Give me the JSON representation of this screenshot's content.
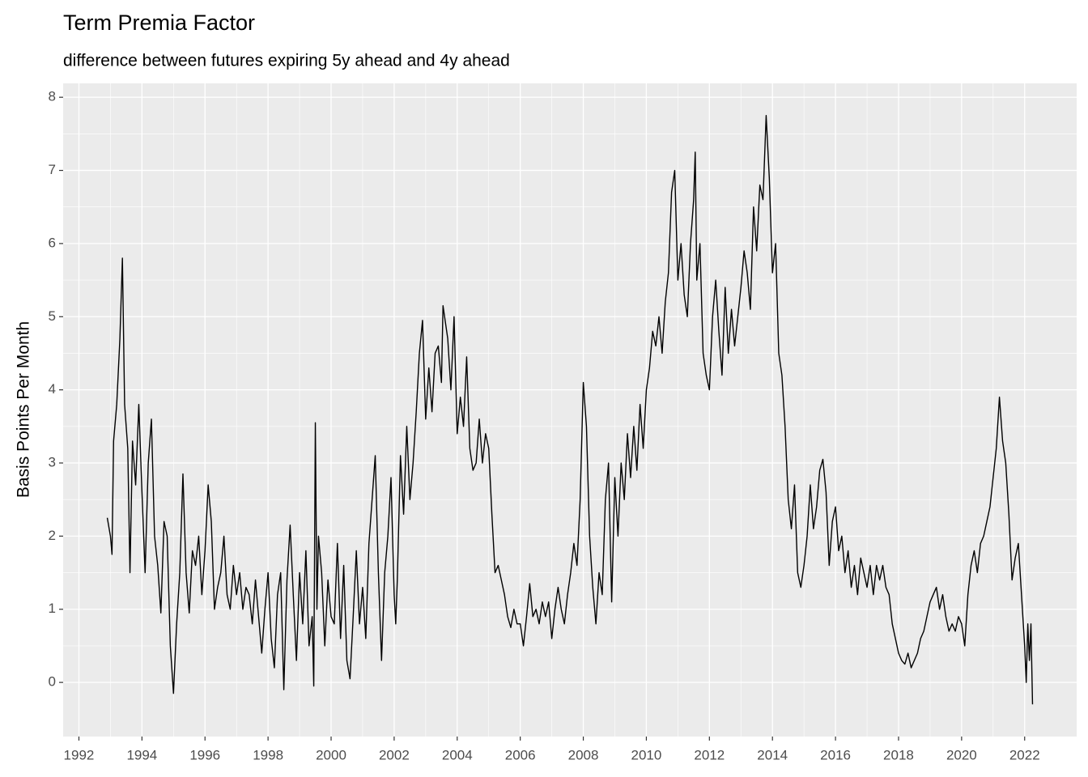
{
  "chart_data": {
    "type": "line",
    "title": "Term Premia Factor",
    "subtitle": "difference between futures expiring 5y ahead and 4y ahead",
    "y_label": "Basis Points Per Month",
    "color": "#000000",
    "grid": true,
    "xlim": [
      1991.5,
      2023.65
    ],
    "ylim": [
      -0.74,
      8.19
    ],
    "xticks": [
      1992,
      1994,
      1996,
      1998,
      2000,
      2002,
      2004,
      2006,
      2008,
      2010,
      2012,
      2014,
      2016,
      2018,
      2020,
      2022
    ],
    "yticks": [
      0,
      1,
      2,
      3,
      4,
      5,
      6,
      7,
      8
    ],
    "x": [
      1992.9,
      1993.0,
      1993.05,
      1993.1,
      1993.2,
      1993.3,
      1993.38,
      1993.45,
      1993.55,
      1993.62,
      1993.7,
      1993.8,
      1993.9,
      1994.0,
      1994.1,
      1994.2,
      1994.3,
      1994.4,
      1994.5,
      1994.6,
      1994.7,
      1994.8,
      1994.9,
      1995.0,
      1995.1,
      1995.2,
      1995.3,
      1995.4,
      1995.5,
      1995.6,
      1995.7,
      1995.8,
      1995.9,
      1996.0,
      1996.1,
      1996.2,
      1996.3,
      1996.4,
      1996.5,
      1996.6,
      1996.7,
      1996.8,
      1996.9,
      1997.0,
      1997.1,
      1997.2,
      1997.3,
      1997.4,
      1997.5,
      1997.6,
      1997.7,
      1997.8,
      1997.9,
      1998.0,
      1998.1,
      1998.2,
      1998.3,
      1998.4,
      1998.5,
      1998.6,
      1998.7,
      1998.8,
      1998.9,
      1999.0,
      1999.1,
      1999.2,
      1999.3,
      1999.4,
      1999.45,
      1999.5,
      1999.55,
      1999.6,
      1999.7,
      1999.8,
      1999.9,
      2000.0,
      2000.1,
      2000.2,
      2000.3,
      2000.4,
      2000.5,
      2000.6,
      2000.7,
      2000.8,
      2000.9,
      2001.0,
      2001.1,
      2001.2,
      2001.3,
      2001.4,
      2001.5,
      2001.6,
      2001.7,
      2001.8,
      2001.9,
      2002.0,
      2002.05,
      2002.1,
      2002.2,
      2002.3,
      2002.4,
      2002.5,
      2002.6,
      2002.7,
      2002.8,
      2002.9,
      2003.0,
      2003.1,
      2003.2,
      2003.3,
      2003.4,
      2003.5,
      2003.55,
      2003.7,
      2003.8,
      2003.9,
      2004.0,
      2004.1,
      2004.2,
      2004.3,
      2004.4,
      2004.5,
      2004.6,
      2004.7,
      2004.8,
      2004.9,
      2005.0,
      2005.1,
      2005.2,
      2005.3,
      2005.4,
      2005.5,
      2005.6,
      2005.7,
      2005.8,
      2005.9,
      2006.0,
      2006.1,
      2006.2,
      2006.3,
      2006.4,
      2006.5,
      2006.6,
      2006.7,
      2006.8,
      2006.9,
      2007.0,
      2007.1,
      2007.2,
      2007.3,
      2007.4,
      2007.5,
      2007.6,
      2007.7,
      2007.8,
      2007.9,
      2008.0,
      2008.1,
      2008.2,
      2008.3,
      2008.4,
      2008.5,
      2008.6,
      2008.7,
      2008.8,
      2008.9,
      2009.0,
      2009.1,
      2009.2,
      2009.3,
      2009.4,
      2009.5,
      2009.6,
      2009.7,
      2009.8,
      2009.9,
      2010.0,
      2010.1,
      2010.2,
      2010.3,
      2010.4,
      2010.5,
      2010.6,
      2010.7,
      2010.8,
      2010.9,
      2011.0,
      2011.1,
      2011.2,
      2011.3,
      2011.4,
      2011.5,
      2011.55,
      2011.6,
      2011.7,
      2011.8,
      2011.9,
      2012.0,
      2012.1,
      2012.2,
      2012.3,
      2012.4,
      2012.5,
      2012.6,
      2012.7,
      2012.8,
      2012.9,
      2013.0,
      2013.1,
      2013.2,
      2013.3,
      2013.4,
      2013.5,
      2013.6,
      2013.7,
      2013.8,
      2013.9,
      2014.0,
      2014.1,
      2014.2,
      2014.3,
      2014.4,
      2014.5,
      2014.6,
      2014.7,
      2014.8,
      2014.9,
      2015.0,
      2015.1,
      2015.2,
      2015.3,
      2015.4,
      2015.5,
      2015.6,
      2015.7,
      2015.8,
      2015.9,
      2016.0,
      2016.1,
      2016.2,
      2016.3,
      2016.4,
      2016.5,
      2016.6,
      2016.7,
      2016.8,
      2016.9,
      2017.0,
      2017.1,
      2017.2,
      2017.3,
      2017.4,
      2017.5,
      2017.6,
      2017.7,
      2017.8,
      2017.9,
      2018.0,
      2018.1,
      2018.2,
      2018.3,
      2018.4,
      2018.5,
      2018.6,
      2018.7,
      2018.8,
      2018.9,
      2019.0,
      2019.1,
      2019.2,
      2019.3,
      2019.4,
      2019.5,
      2019.6,
      2019.7,
      2019.8,
      2019.9,
      2020.0,
      2020.1,
      2020.2,
      2020.3,
      2020.4,
      2020.5,
      2020.6,
      2020.7,
      2020.8,
      2020.9,
      2021.0,
      2021.1,
      2021.2,
      2021.3,
      2021.4,
      2021.5,
      2021.6,
      2021.7,
      2021.8,
      2021.9,
      2022.0,
      2022.05,
      2022.1,
      2022.15,
      2022.2,
      2022.25
    ],
    "values": [
      2.25,
      2.0,
      1.75,
      3.3,
      3.8,
      4.7,
      5.8,
      3.8,
      3.2,
      1.5,
      3.3,
      2.7,
      3.8,
      2.6,
      1.5,
      3.0,
      3.6,
      2.0,
      1.6,
      0.95,
      2.2,
      2.0,
      0.5,
      -0.15,
      0.8,
      1.5,
      2.85,
      1.5,
      0.95,
      1.8,
      1.6,
      2.0,
      1.2,
      1.8,
      2.7,
      2.2,
      1.0,
      1.3,
      1.5,
      2.0,
      1.2,
      1.0,
      1.6,
      1.2,
      1.5,
      1.0,
      1.3,
      1.2,
      0.8,
      1.4,
      0.9,
      0.4,
      1.0,
      1.5,
      0.6,
      0.2,
      1.2,
      1.5,
      -0.1,
      1.4,
      2.15,
      1.2,
      0.3,
      1.5,
      0.8,
      1.8,
      0.5,
      0.9,
      -0.05,
      3.55,
      1.0,
      2.0,
      1.5,
      0.5,
      1.4,
      0.9,
      0.8,
      1.9,
      0.6,
      1.6,
      0.3,
      0.05,
      0.9,
      1.8,
      0.8,
      1.3,
      0.6,
      1.9,
      2.5,
      3.1,
      1.5,
      0.3,
      1.5,
      2.0,
      2.8,
      1.2,
      0.8,
      1.4,
      3.1,
      2.3,
      3.5,
      2.5,
      3.0,
      3.7,
      4.5,
      4.95,
      3.6,
      4.3,
      3.7,
      4.5,
      4.6,
      4.1,
      5.15,
      4.7,
      4.0,
      5.0,
      3.4,
      3.9,
      3.5,
      4.45,
      3.2,
      2.9,
      3.0,
      3.6,
      3.0,
      3.4,
      3.2,
      2.3,
      1.5,
      1.6,
      1.4,
      1.2,
      0.9,
      0.75,
      1.0,
      0.8,
      0.8,
      0.5,
      0.9,
      1.35,
      0.9,
      1.0,
      0.8,
      1.1,
      0.9,
      1.1,
      0.6,
      1.0,
      1.3,
      1.0,
      0.8,
      1.2,
      1.5,
      1.9,
      1.6,
      2.5,
      4.1,
      3.5,
      2.0,
      1.3,
      0.8,
      1.5,
      1.2,
      2.5,
      3.0,
      1.1,
      2.8,
      2.0,
      3.0,
      2.5,
      3.4,
      2.8,
      3.5,
      2.9,
      3.8,
      3.2,
      4.0,
      4.3,
      4.8,
      4.6,
      5.0,
      4.5,
      5.2,
      5.6,
      6.7,
      7.0,
      5.5,
      6.0,
      5.3,
      5.0,
      6.0,
      6.6,
      7.25,
      5.5,
      6.0,
      4.5,
      4.2,
      4.0,
      5.0,
      5.5,
      4.8,
      4.2,
      5.4,
      4.5,
      5.1,
      4.6,
      5.0,
      5.4,
      5.9,
      5.6,
      5.1,
      6.5,
      5.9,
      6.8,
      6.6,
      7.75,
      6.9,
      5.6,
      6.0,
      4.5,
      4.2,
      3.5,
      2.5,
      2.1,
      2.7,
      1.5,
      1.3,
      1.6,
      2.0,
      2.7,
      2.1,
      2.4,
      2.9,
      3.05,
      2.6,
      1.6,
      2.2,
      2.4,
      1.8,
      2.0,
      1.5,
      1.8,
      1.3,
      1.6,
      1.2,
      1.7,
      1.5,
      1.3,
      1.6,
      1.2,
      1.6,
      1.4,
      1.6,
      1.3,
      1.2,
      0.8,
      0.6,
      0.4,
      0.3,
      0.25,
      0.4,
      0.2,
      0.3,
      0.4,
      0.6,
      0.7,
      0.9,
      1.1,
      1.2,
      1.3,
      1.0,
      1.2,
      0.9,
      0.7,
      0.8,
      0.7,
      0.9,
      0.8,
      0.5,
      1.2,
      1.6,
      1.8,
      1.5,
      1.9,
      2.0,
      2.2,
      2.4,
      2.8,
      3.2,
      3.9,
      3.3,
      3.0,
      2.3,
      1.4,
      1.7,
      1.9,
      1.2,
      0.5,
      0.0,
      0.8,
      0.3,
      0.8,
      -0.3
    ]
  }
}
